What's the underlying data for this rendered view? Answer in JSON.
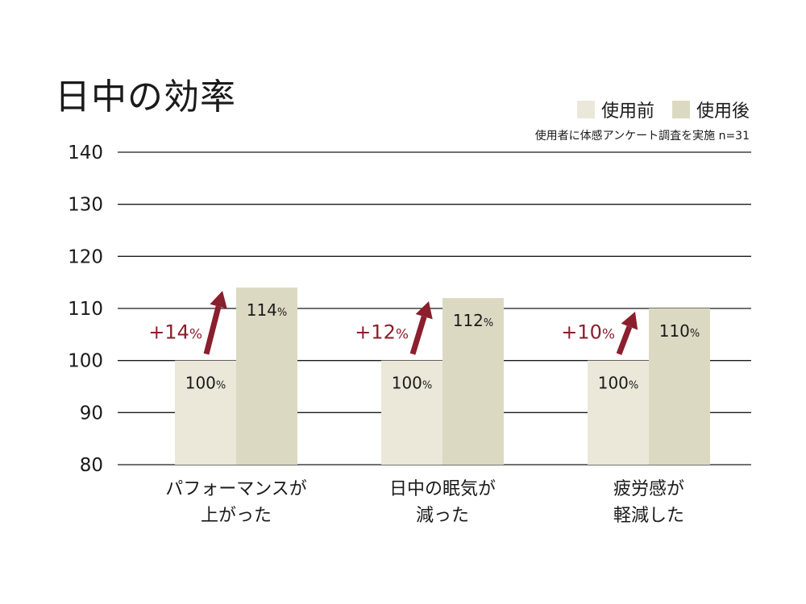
{
  "chart_data": {
    "type": "bar",
    "title": "日中の効率",
    "note": "使用者に体感アンケート調査を実施 n=31",
    "categories": [
      [
        "パフォーマンスが",
        "上がった"
      ],
      [
        "日中の眠気が",
        "減った"
      ],
      [
        "疲労感が",
        "軽減した"
      ]
    ],
    "series": [
      {
        "name": "使用前",
        "values": [
          100,
          100,
          100
        ],
        "color": "#ebe8da"
      },
      {
        "name": "使用後",
        "values": [
          114,
          112,
          110
        ],
        "color": "#dcd9c3"
      }
    ],
    "value_labels": {
      "before": [
        "100",
        "100",
        "100"
      ],
      "after": [
        "114",
        "112",
        "110"
      ],
      "unit": "%"
    },
    "increase_labels": [
      "+14",
      "+12",
      "+10"
    ],
    "increase_unit": "%",
    "increase_color": "#8a1f2e",
    "yticks": [
      140,
      130,
      120,
      110,
      100,
      90,
      80
    ],
    "ylim": [
      80,
      140
    ],
    "grid": true,
    "legend_position": "top-right"
  }
}
